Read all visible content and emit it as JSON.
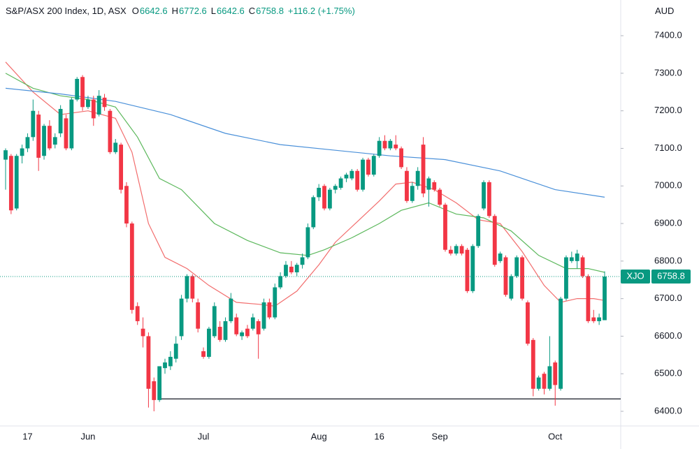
{
  "chart_data": {
    "type": "candlestick",
    "title": "S&P/ASX 200 Index, 1D, ASX",
    "ohlc_legend": {
      "o_label": "O",
      "open": 6642.6,
      "h_label": "H",
      "high": 6772.6,
      "l_label": "L",
      "low": 6642.6,
      "c_label": "C",
      "close": 6758.8,
      "change": "+116.2 (+1.75%)"
    },
    "currency": "AUD",
    "up_color": "#089981",
    "down_color": "#f23645",
    "categories": [
      null,
      null,
      null,
      null,
      "17",
      null,
      null,
      null,
      null,
      null,
      null,
      null,
      null,
      null,
      null,
      "Jun",
      null,
      null,
      null,
      null,
      null,
      null,
      null,
      null,
      null,
      null,
      null,
      null,
      null,
      null,
      null,
      null,
      null,
      null,
      null,
      null,
      "Jul",
      null,
      null,
      null,
      null,
      null,
      null,
      null,
      null,
      null,
      null,
      null,
      null,
      null,
      null,
      null,
      null,
      null,
      null,
      null,
      null,
      "Aug",
      null,
      null,
      null,
      null,
      null,
      null,
      null,
      null,
      null,
      null,
      "16",
      null,
      null,
      null,
      null,
      null,
      null,
      null,
      null,
      null,
      null,
      "Sep",
      null,
      null,
      null,
      null,
      null,
      null,
      null,
      null,
      null,
      null,
      null,
      null,
      null,
      null,
      null,
      null,
      null,
      null,
      null,
      null,
      "Oct",
      null,
      null,
      null,
      null,
      null,
      null,
      null,
      null,
      null
    ],
    "candles": [
      [
        7070,
        7100,
        6990,
        7095
      ],
      [
        7080,
        7085,
        6925,
        6935
      ],
      [
        6940,
        7085,
        6935,
        7080
      ],
      [
        7080,
        7110,
        7060,
        7100
      ],
      [
        7100,
        7140,
        7090,
        7130
      ],
      [
        7130,
        7230,
        7120,
        7200
      ],
      [
        7190,
        7200,
        7040,
        7075
      ],
      [
        7080,
        7165,
        7070,
        7160
      ],
      [
        7160,
        7175,
        7095,
        7100
      ],
      [
        7110,
        7140,
        7100,
        7130
      ],
      [
        7140,
        7215,
        7130,
        7205
      ],
      [
        7180,
        7190,
        7095,
        7100
      ],
      [
        7100,
        7235,
        7095,
        7230
      ],
      [
        7230,
        7290,
        7225,
        7285
      ],
      [
        7290,
        7295,
        7200,
        7210
      ],
      [
        7210,
        7240,
        7205,
        7230
      ],
      [
        7230,
        7240,
        7160,
        7180
      ],
      [
        7190,
        7255,
        7185,
        7240
      ],
      [
        7235,
        7245,
        7200,
        7210
      ],
      [
        7200,
        7205,
        7085,
        7090
      ],
      [
        7090,
        7125,
        7085,
        7115
      ],
      [
        7110,
        7115,
        6980,
        6990
      ],
      [
        7000,
        7010,
        6890,
        6900
      ],
      [
        6900,
        6905,
        6660,
        6670
      ],
      [
        6680,
        6690,
        6630,
        6640
      ],
      [
        6620,
        6650,
        6570,
        6600
      ],
      [
        6600,
        6610,
        6410,
        6460
      ],
      [
        6480,
        6490,
        6400,
        6430
      ],
      [
        6430,
        6520,
        6425,
        6520
      ],
      [
        6515,
        6540,
        6500,
        6530
      ],
      [
        6520,
        6560,
        6510,
        6545
      ],
      [
        6540,
        6600,
        6530,
        6580
      ],
      [
        6600,
        6710,
        6590,
        6700
      ],
      [
        6700,
        6765,
        6690,
        6760
      ],
      [
        6760,
        6765,
        6690,
        6700
      ],
      [
        6690,
        6700,
        6610,
        6620
      ],
      [
        6560,
        6570,
        6540,
        6545
      ],
      [
        6545,
        6625,
        6540,
        6620
      ],
      [
        6600,
        6690,
        6595,
        6680
      ],
      [
        6625,
        6640,
        6585,
        6590
      ],
      [
        6590,
        6650,
        6585,
        6640
      ],
      [
        6640,
        6715,
        6635,
        6700
      ],
      [
        6650,
        6660,
        6600,
        6605
      ],
      [
        6600,
        6615,
        6590,
        6610
      ],
      [
        6620,
        6630,
        6595,
        6600
      ],
      [
        6620,
        6660,
        6615,
        6650
      ],
      [
        6640,
        6645,
        6540,
        6605
      ],
      [
        6620,
        6700,
        6615,
        6690
      ],
      [
        6690,
        6700,
        6645,
        6650
      ],
      [
        6650,
        6740,
        6645,
        6730
      ],
      [
        6730,
        6770,
        6725,
        6760
      ],
      [
        6760,
        6800,
        6755,
        6790
      ],
      [
        6785,
        6800,
        6765,
        6770
      ],
      [
        6770,
        6795,
        6760,
        6790
      ],
      [
        6790,
        6820,
        6780,
        6810
      ],
      [
        6810,
        6900,
        6805,
        6890
      ],
      [
        6890,
        6975,
        6885,
        6970
      ],
      [
        6970,
        7005,
        6960,
        6995
      ],
      [
        7000,
        7005,
        6935,
        6940
      ],
      [
        6940,
        6995,
        6935,
        6990
      ],
      [
        6990,
        7005,
        6980,
        7000
      ],
      [
        6995,
        7025,
        6990,
        7020
      ],
      [
        7020,
        7035,
        7010,
        7030
      ],
      [
        7020,
        7045,
        7015,
        7040
      ],
      [
        7040,
        7045,
        6985,
        6990
      ],
      [
        6990,
        7075,
        6985,
        7070
      ],
      [
        7070,
        7075,
        7025,
        7030
      ],
      [
        7030,
        7085,
        7025,
        7080
      ],
      [
        7080,
        7130,
        7075,
        7120
      ],
      [
        7120,
        7135,
        7095,
        7100
      ],
      [
        7100,
        7125,
        7095,
        7120
      ],
      [
        7110,
        7135,
        7095,
        7100
      ],
      [
        7100,
        7105,
        7045,
        7050
      ],
      [
        7040,
        7050,
        6955,
        6960
      ],
      [
        6960,
        7010,
        6955,
        7000
      ],
      [
        7000,
        7050,
        6990,
        7040
      ],
      [
        7110,
        7130,
        6970,
        6980
      ],
      [
        6990,
        7025,
        6945,
        7020
      ],
      [
        7010,
        7015,
        6985,
        6990
      ],
      [
        6990,
        6995,
        6945,
        6950
      ],
      [
        6950,
        6955,
        6825,
        6830
      ],
      [
        6830,
        6840,
        6815,
        6820
      ],
      [
        6820,
        6845,
        6815,
        6840
      ],
      [
        6840,
        6845,
        6815,
        6820
      ],
      [
        6830,
        6835,
        6715,
        6720
      ],
      [
        6720,
        6845,
        6715,
        6840
      ],
      [
        6840,
        6925,
        6835,
        6920
      ],
      [
        6940,
        7015,
        6935,
        7010
      ],
      [
        7010,
        7015,
        6915,
        6920
      ],
      [
        6920,
        6925,
        6785,
        6790
      ],
      [
        6800,
        6825,
        6795,
        6820
      ],
      [
        6810,
        6815,
        6705,
        6710
      ],
      [
        6700,
        6765,
        6695,
        6760
      ],
      [
        6760,
        6815,
        6755,
        6810
      ],
      [
        6810,
        6815,
        6695,
        6700
      ],
      [
        6690,
        6695,
        6575,
        6580
      ],
      [
        6590,
        6595,
        6440,
        6460
      ],
      [
        6460,
        6495,
        6455,
        6490
      ],
      [
        6500,
        6505,
        6445,
        6460
      ],
      [
        6460,
        6600,
        6455,
        6520
      ],
      [
        6530,
        6535,
        6415,
        6470
      ],
      [
        6460,
        6705,
        6455,
        6700
      ],
      [
        6700,
        6815,
        6695,
        6810
      ],
      [
        6800,
        6825,
        6795,
        6810
      ],
      [
        6800,
        6830,
        6780,
        6820
      ],
      [
        6810,
        6815,
        6755,
        6760
      ],
      [
        6760,
        6765,
        6635,
        6640
      ],
      [
        6650,
        6670,
        6635,
        6640
      ],
      [
        6640,
        6660,
        6630,
        6650
      ],
      [
        6642.6,
        6772.6,
        6642.6,
        6758.8
      ]
    ],
    "moving_averages": [
      {
        "color": "#f26d6d",
        "x": [
          0,
          5,
          10,
          15,
          20,
          23,
          26,
          29,
          33,
          37,
          42,
          46,
          49,
          53,
          57,
          60,
          64,
          68,
          71,
          74,
          78,
          82,
          86,
          90,
          94,
          98,
          101,
          104,
          107,
          109
        ],
        "values": [
          7330,
          7250,
          7190,
          7200,
          7180,
          7090,
          6900,
          6810,
          6780,
          6735,
          6690,
          6685,
          6680,
          6720,
          6790,
          6850,
          6905,
          6960,
          7005,
          7010,
          6990,
          6955,
          6910,
          6900,
          6825,
          6735,
          6690,
          6700,
          6700,
          6695
        ]
      },
      {
        "color": "#5cb85c",
        "x": [
          0,
          5,
          10,
          15,
          20,
          24,
          28,
          32,
          38,
          44,
          50,
          55,
          58,
          63,
          68,
          72,
          77,
          82,
          87,
          92,
          97,
          102,
          106,
          109
        ],
        "values": [
          7300,
          7260,
          7240,
          7230,
          7210,
          7130,
          7020,
          6990,
          6900,
          6855,
          6822,
          6815,
          6830,
          6862,
          6900,
          6935,
          6955,
          6925,
          6915,
          6880,
          6815,
          6780,
          6780,
          6770
        ]
      },
      {
        "color": "#4a90d9",
        "x": [
          0,
          10,
          20,
          30,
          40,
          50,
          60,
          70,
          80,
          90,
          100,
          109
        ],
        "values": [
          7260,
          7245,
          7225,
          7190,
          7140,
          7110,
          7095,
          7080,
          7070,
          7040,
          6990,
          6970
        ]
      }
    ],
    "hline": {
      "value": 6433,
      "x": [
        28,
        112
      ]
    },
    "last_price": {
      "name": "XJO",
      "value": 6758.8
    },
    "ylim": [
      6361,
      7495
    ],
    "yticks": [
      {
        "value": 6400,
        "label": "6400.0"
      },
      {
        "value": 6500,
        "label": "6500.0"
      },
      {
        "value": 6600,
        "label": "6600.0"
      },
      {
        "value": 6700,
        "label": "6700.0"
      },
      {
        "value": 6800,
        "label": "6800.0"
      },
      {
        "value": 6900,
        "label": "6900.0"
      },
      {
        "value": 7000,
        "label": "7000.0"
      },
      {
        "value": 7100,
        "label": "7100.0"
      },
      {
        "value": 7200,
        "label": "7200.0"
      },
      {
        "value": 7300,
        "label": "7300.0"
      },
      {
        "value": 7400,
        "label": "7400.0"
      }
    ]
  }
}
